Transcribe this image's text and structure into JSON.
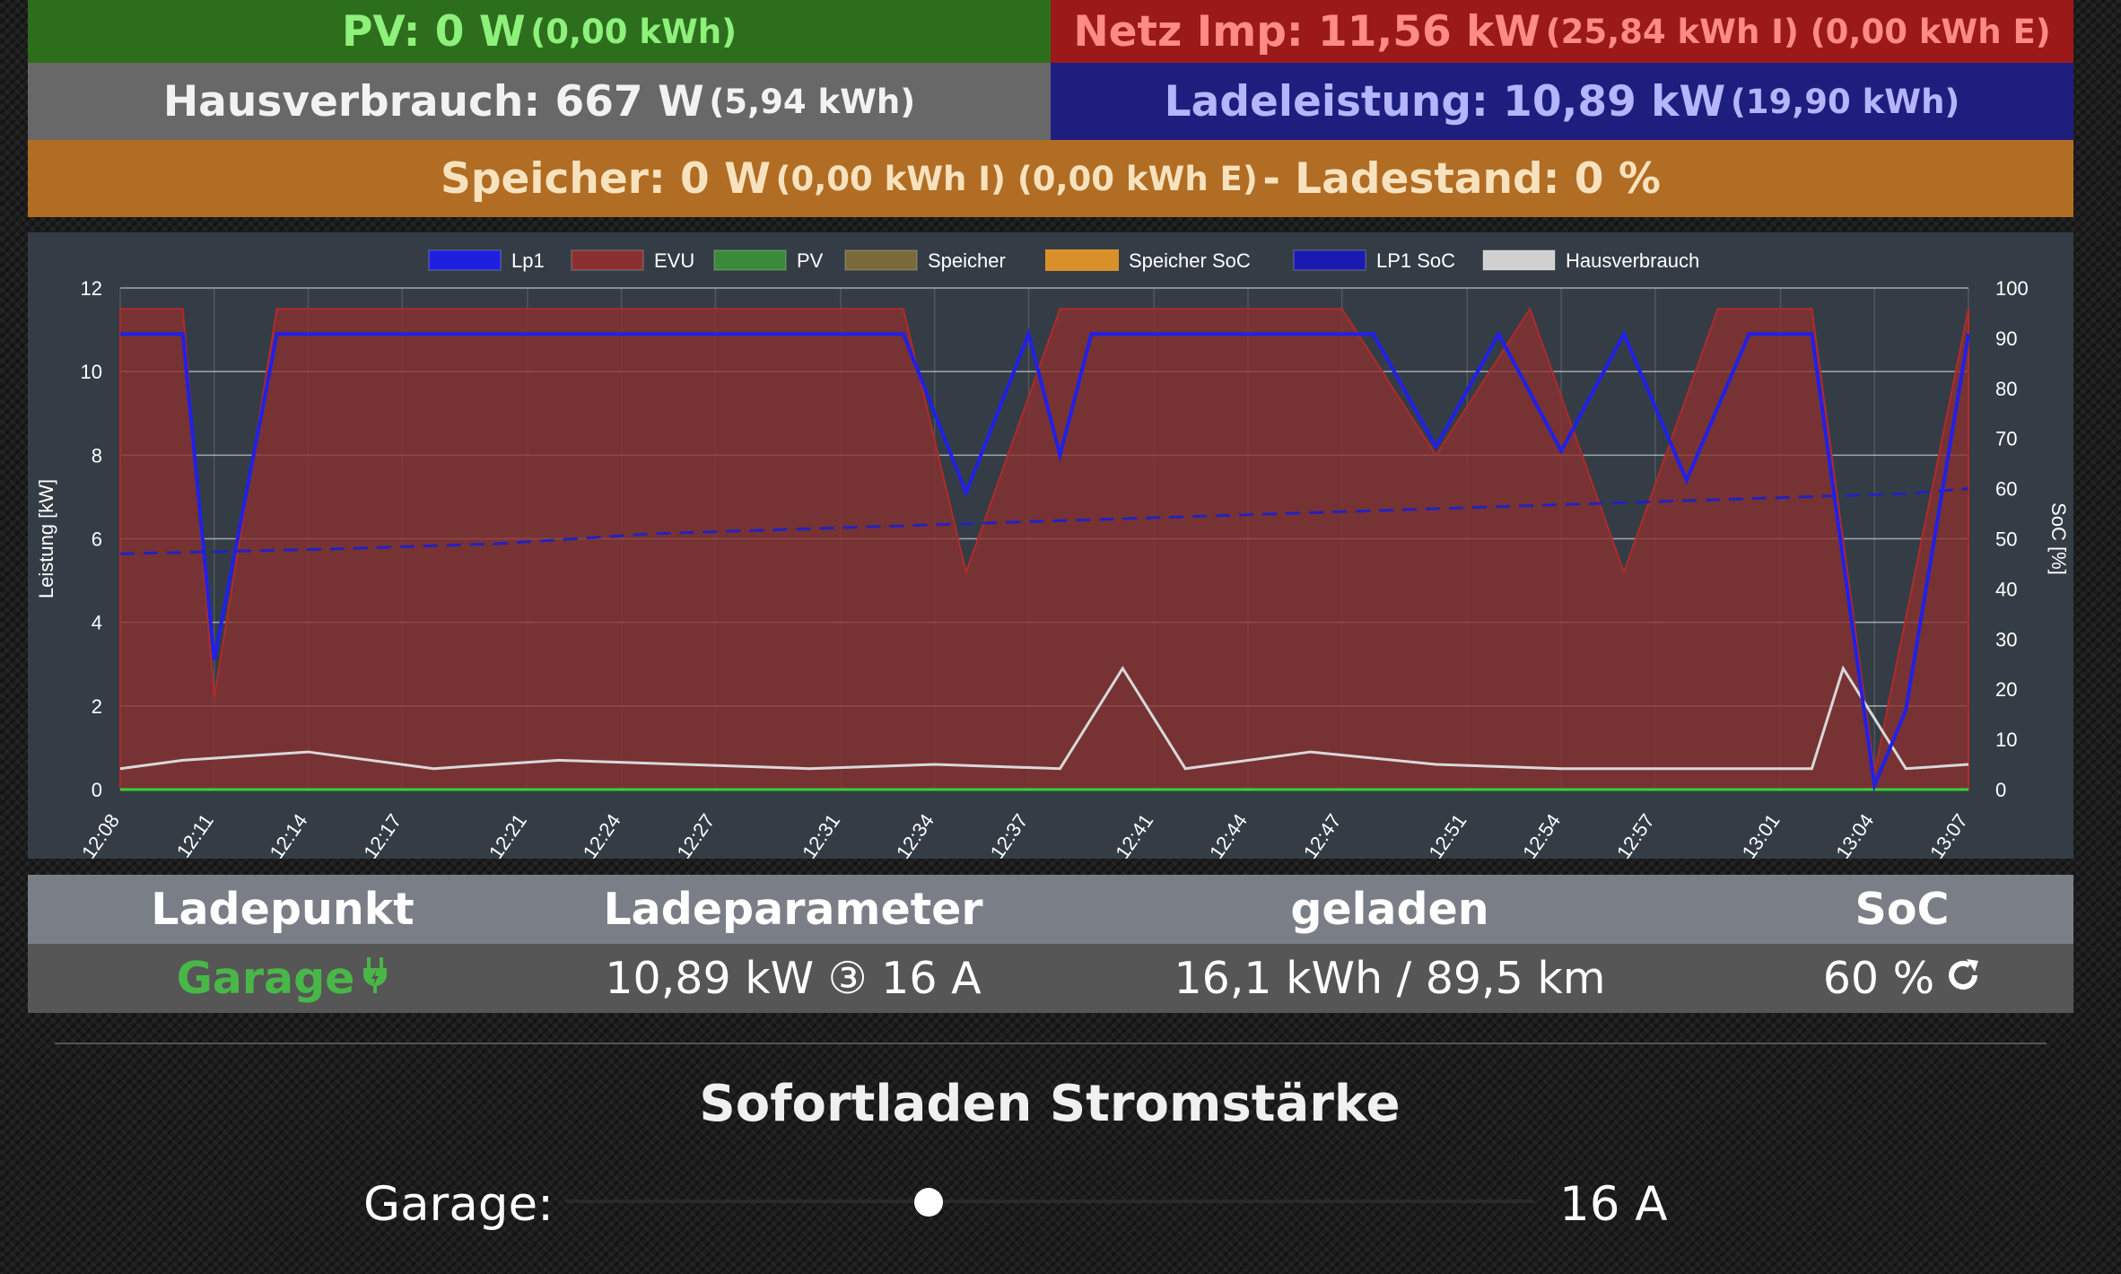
{
  "header": {
    "pv": {
      "main": "PV: 0 W",
      "sub": "(0,00 kWh)"
    },
    "netz": {
      "main": "Netz Imp: 11,56 kW",
      "sub": "(25,84 kWh I) (0,00 kWh E)"
    },
    "haus": {
      "main": "Hausverbrauch: 667 W",
      "sub": "(5,94 kWh)"
    },
    "lade": {
      "main": "Ladeleistung: 10,89 kW",
      "sub": "(19,90 kWh)"
    },
    "speicher": {
      "main": "Speicher: 0 W",
      "sub": "(0,00 kWh I) (0,00 kWh E)",
      "tail": "- Ladestand: 0 %"
    }
  },
  "chart_data": {
    "type": "area",
    "legend": [
      "Lp1",
      "EVU",
      "PV",
      "Speicher",
      "Speicher SoC",
      "LP1 SoC",
      "Hausverbrauch"
    ],
    "legend_colors": [
      "#1f1fe0",
      "#8b3030",
      "#3a8a3a",
      "#7a6a3a",
      "#d9902a",
      "#1a1ab0",
      "#d0d0d0"
    ],
    "ylabel_left": "Leistung [kW]",
    "ylabel_right": "SoC [%]",
    "ylim_left": [
      0,
      12
    ],
    "ylim_right": [
      0,
      100
    ],
    "yticks_left": [
      "0",
      "2",
      "4",
      "6",
      "8",
      "10",
      "12"
    ],
    "yticks_right": [
      "0",
      "10",
      "20",
      "30",
      "40",
      "50",
      "60",
      "70",
      "80",
      "90",
      "100"
    ],
    "xticks": [
      "12:08",
      "12:11",
      "12:14",
      "12:17",
      "12:21",
      "12:24",
      "12:27",
      "12:31",
      "12:34",
      "12:37",
      "12:41",
      "12:44",
      "12:47",
      "12:51",
      "12:54",
      "12:57",
      "13:01",
      "13:04",
      "13:07"
    ],
    "series": [
      {
        "name": "Lp1",
        "x": [
          "12:08",
          "12:10",
          "12:11",
          "12:13",
          "12:15",
          "12:18",
          "12:20",
          "12:22",
          "12:23",
          "12:24",
          "12:25",
          "12:27",
          "12:29",
          "12:31",
          "12:33",
          "12:35",
          "12:37",
          "12:38",
          "12:39",
          "12:41",
          "12:42",
          "12:44",
          "12:46",
          "12:48",
          "12:50",
          "12:52",
          "12:54",
          "12:56",
          "12:58",
          "13:00",
          "13:02",
          "13:04",
          "13:05",
          "13:07"
        ],
        "values": [
          10.9,
          10.9,
          3.1,
          10.9,
          10.9,
          10.9,
          10.9,
          10.9,
          10.9,
          10.9,
          10.9,
          10.9,
          10.9,
          10.9,
          10.9,
          7.1,
          10.9,
          8.0,
          10.9,
          10.9,
          10.9,
          10.9,
          10.9,
          10.9,
          8.2,
          10.9,
          8.1,
          10.9,
          7.4,
          10.9,
          10.9,
          0.1,
          1.9,
          10.9
        ]
      },
      {
        "name": "EVU",
        "x": [
          "12:08",
          "12:10",
          "12:11",
          "12:13",
          "12:15",
          "12:18",
          "12:20",
          "12:22",
          "12:25",
          "12:28",
          "12:31",
          "12:33",
          "12:35",
          "12:38",
          "12:41",
          "12:44",
          "12:47",
          "12:50",
          "12:53",
          "12:56",
          "12:59",
          "13:02",
          "13:04",
          "13:07"
        ],
        "values": [
          11.5,
          11.5,
          2.2,
          11.5,
          11.5,
          11.5,
          11.5,
          11.5,
          11.5,
          11.5,
          11.5,
          11.5,
          5.2,
          11.5,
          11.5,
          11.5,
          11.5,
          8.0,
          11.5,
          5.2,
          11.5,
          11.5,
          0.4,
          11.5
        ]
      },
      {
        "name": "Hausverbrauch",
        "x": [
          "12:08",
          "12:10",
          "12:14",
          "12:18",
          "12:22",
          "12:26",
          "12:30",
          "12:34",
          "12:38",
          "12:40",
          "12:42",
          "12:46",
          "12:50",
          "12:54",
          "12:58",
          "13:02",
          "13:03",
          "13:05",
          "13:07"
        ],
        "values": [
          0.5,
          0.7,
          0.9,
          0.5,
          0.7,
          0.6,
          0.5,
          0.6,
          0.5,
          2.9,
          0.5,
          0.9,
          0.6,
          0.5,
          0.5,
          0.5,
          2.9,
          0.5,
          0.6
        ]
      },
      {
        "name": "LP1 SoC",
        "x": [
          "12:08",
          "12:15",
          "12:20",
          "12:25",
          "12:30",
          "12:35",
          "12:40",
          "12:45",
          "12:50",
          "12:55",
          "13:00",
          "13:05",
          "13:07"
        ],
        "values": [
          47,
          48,
          49,
          51,
          52,
          53,
          54,
          55,
          56,
          57,
          58,
          59,
          60
        ]
      },
      {
        "name": "PV",
        "x": [
          "12:08",
          "13:07"
        ],
        "values": [
          0,
          0
        ]
      }
    ]
  },
  "table": {
    "headers": [
      "Ladepunkt",
      "Ladeparameter",
      "geladen",
      "SoC"
    ],
    "row": {
      "name": "Garage",
      "param": "10,89 kW",
      "phases_icon": "③",
      "amps": "16 A",
      "charged": "16,1 kWh / 89,5 km",
      "soc": "60 %"
    },
    "icons": {
      "plug": "plug-icon",
      "refresh": "refresh-icon"
    },
    "accent": "#49b748"
  },
  "sofort": {
    "title": "Sofortladen Stromstärke",
    "label": "Garage:",
    "value": "16 A",
    "slider_fraction": 0.375
  }
}
